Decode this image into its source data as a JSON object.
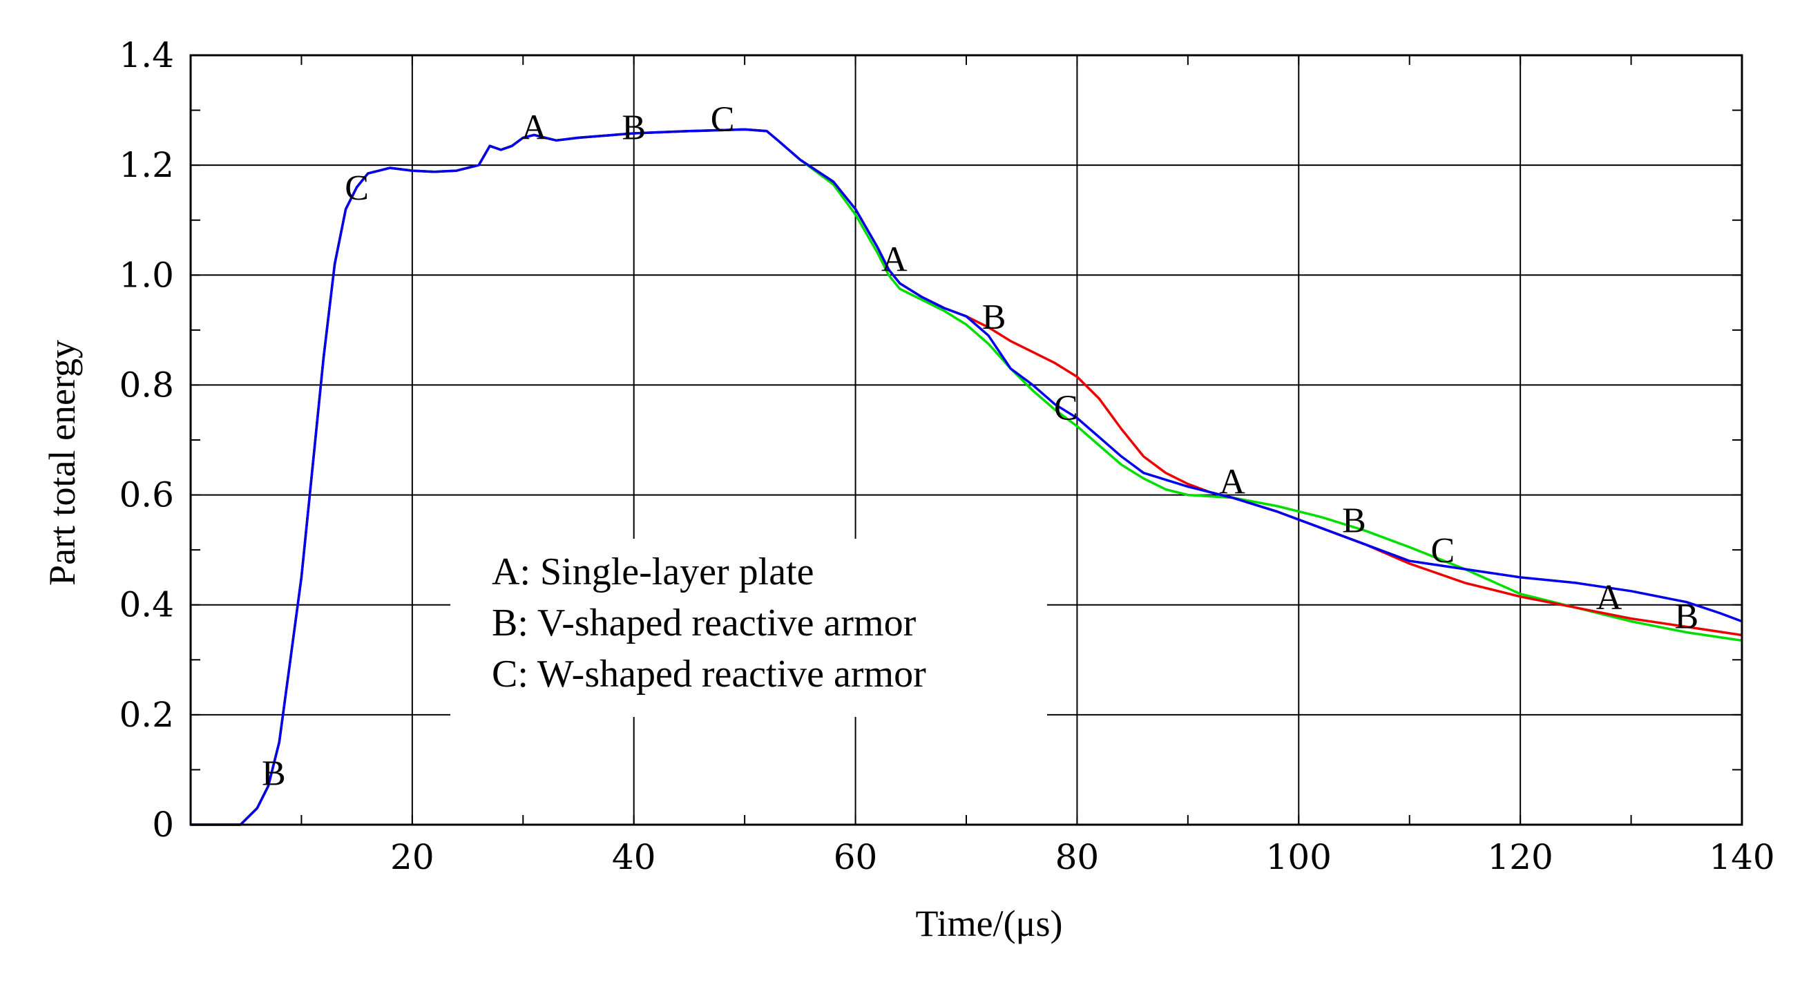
{
  "chart_data": {
    "type": "line",
    "title": "",
    "xlabel": "Time/(μs)",
    "ylabel": "Part total energy",
    "xlim": [
      0,
      140
    ],
    "ylim": [
      0,
      1.4
    ],
    "x_ticks": [
      20,
      40,
      60,
      80,
      100,
      120,
      140
    ],
    "x_tick_labels": [
      "20",
      "40",
      "60",
      "80",
      "100",
      "120",
      "140"
    ],
    "y_ticks": [
      0,
      0.2,
      0.4,
      0.6,
      0.8,
      1.0,
      1.2,
      1.4
    ],
    "y_tick_labels": [
      "0",
      "0.2",
      "0.4",
      "0.6",
      "0.8",
      "1.0",
      "1.2",
      "1.4"
    ],
    "grid": true,
    "legend_position": "center-left",
    "legend": [
      "A: Single-layer plate",
      "B: V-shaped reactive armor",
      "C: W-shaped reactive armor"
    ],
    "series": [
      {
        "marker": "A",
        "color": "#0000ee",
        "points": [
          [
            0,
            0
          ],
          [
            4.5,
            0
          ],
          [
            6,
            0.03
          ],
          [
            7,
            0.07
          ],
          [
            8,
            0.15
          ],
          [
            9,
            0.3
          ],
          [
            10,
            0.45
          ],
          [
            11,
            0.65
          ],
          [
            12,
            0.85
          ],
          [
            13,
            1.02
          ],
          [
            14,
            1.12
          ],
          [
            15,
            1.16
          ],
          [
            16,
            1.185
          ],
          [
            18,
            1.195
          ],
          [
            20,
            1.19
          ],
          [
            22,
            1.188
          ],
          [
            24,
            1.19
          ],
          [
            25,
            1.195
          ],
          [
            26,
            1.2
          ],
          [
            27,
            1.235
          ],
          [
            28,
            1.228
          ],
          [
            29,
            1.235
          ],
          [
            30,
            1.25
          ],
          [
            31,
            1.255
          ],
          [
            32,
            1.25
          ],
          [
            33,
            1.245
          ],
          [
            35,
            1.25
          ],
          [
            40,
            1.258
          ],
          [
            45,
            1.262
          ],
          [
            50,
            1.265
          ],
          [
            52,
            1.262
          ],
          [
            53,
            1.245
          ],
          [
            55,
            1.21
          ],
          [
            58,
            1.17
          ],
          [
            60,
            1.12
          ],
          [
            62,
            1.05
          ],
          [
            63,
            1.01
          ],
          [
            64,
            0.985
          ],
          [
            66,
            0.96
          ],
          [
            68,
            0.94
          ],
          [
            70,
            0.925
          ],
          [
            72,
            0.89
          ],
          [
            74,
            0.83
          ],
          [
            76,
            0.8
          ],
          [
            78,
            0.765
          ],
          [
            80,
            0.74
          ],
          [
            82,
            0.705
          ],
          [
            84,
            0.67
          ],
          [
            86,
            0.64
          ],
          [
            90,
            0.615
          ],
          [
            94,
            0.595
          ],
          [
            98,
            0.57
          ],
          [
            102,
            0.54
          ],
          [
            106,
            0.51
          ],
          [
            110,
            0.48
          ],
          [
            115,
            0.465
          ],
          [
            120,
            0.45
          ],
          [
            125,
            0.44
          ],
          [
            130,
            0.425
          ],
          [
            135,
            0.405
          ],
          [
            138,
            0.385
          ],
          [
            140,
            0.37
          ]
        ]
      },
      {
        "marker": "B",
        "color": "#ee0000",
        "points": [
          [
            0,
            0
          ],
          [
            4.5,
            0
          ],
          [
            6,
            0.03
          ],
          [
            7,
            0.07
          ],
          [
            8,
            0.15
          ],
          [
            9,
            0.3
          ],
          [
            10,
            0.45
          ],
          [
            11,
            0.65
          ],
          [
            12,
            0.85
          ],
          [
            13,
            1.02
          ],
          [
            14,
            1.12
          ],
          [
            15,
            1.16
          ],
          [
            16,
            1.185
          ],
          [
            18,
            1.195
          ],
          [
            20,
            1.19
          ],
          [
            22,
            1.188
          ],
          [
            24,
            1.19
          ],
          [
            25,
            1.195
          ],
          [
            26,
            1.2
          ],
          [
            27,
            1.235
          ],
          [
            28,
            1.228
          ],
          [
            29,
            1.235
          ],
          [
            30,
            1.25
          ],
          [
            31,
            1.255
          ],
          [
            32,
            1.25
          ],
          [
            33,
            1.245
          ],
          [
            35,
            1.25
          ],
          [
            40,
            1.258
          ],
          [
            45,
            1.262
          ],
          [
            50,
            1.265
          ],
          [
            52,
            1.262
          ],
          [
            53,
            1.245
          ],
          [
            55,
            1.21
          ],
          [
            58,
            1.17
          ],
          [
            60,
            1.12
          ],
          [
            62,
            1.05
          ],
          [
            63,
            1.01
          ],
          [
            64,
            0.985
          ],
          [
            66,
            0.96
          ],
          [
            68,
            0.94
          ],
          [
            70,
            0.925
          ],
          [
            72,
            0.905
          ],
          [
            74,
            0.88
          ],
          [
            76,
            0.86
          ],
          [
            78,
            0.84
          ],
          [
            80,
            0.815
          ],
          [
            82,
            0.775
          ],
          [
            84,
            0.72
          ],
          [
            86,
            0.67
          ],
          [
            88,
            0.64
          ],
          [
            90,
            0.62
          ],
          [
            92,
            0.605
          ],
          [
            94,
            0.595
          ],
          [
            98,
            0.57
          ],
          [
            102,
            0.54
          ],
          [
            106,
            0.51
          ],
          [
            110,
            0.475
          ],
          [
            115,
            0.44
          ],
          [
            120,
            0.415
          ],
          [
            125,
            0.395
          ],
          [
            130,
            0.375
          ],
          [
            135,
            0.36
          ],
          [
            140,
            0.345
          ]
        ]
      },
      {
        "marker": "C",
        "color": "#00dd00",
        "points": [
          [
            0,
            0
          ],
          [
            4.5,
            0
          ],
          [
            6,
            0.03
          ],
          [
            7,
            0.07
          ],
          [
            8,
            0.15
          ],
          [
            9,
            0.3
          ],
          [
            10,
            0.45
          ],
          [
            11,
            0.65
          ],
          [
            12,
            0.85
          ],
          [
            13,
            1.02
          ],
          [
            14,
            1.12
          ],
          [
            15,
            1.16
          ],
          [
            16,
            1.185
          ],
          [
            18,
            1.195
          ],
          [
            20,
            1.19
          ],
          [
            22,
            1.188
          ],
          [
            24,
            1.19
          ],
          [
            25,
            1.195
          ],
          [
            26,
            1.2
          ],
          [
            27,
            1.235
          ],
          [
            28,
            1.228
          ],
          [
            29,
            1.235
          ],
          [
            30,
            1.25
          ],
          [
            31,
            1.255
          ],
          [
            32,
            1.25
          ],
          [
            33,
            1.245
          ],
          [
            35,
            1.25
          ],
          [
            40,
            1.258
          ],
          [
            45,
            1.262
          ],
          [
            50,
            1.265
          ],
          [
            52,
            1.262
          ],
          [
            53,
            1.245
          ],
          [
            55,
            1.21
          ],
          [
            58,
            1.165
          ],
          [
            60,
            1.11
          ],
          [
            62,
            1.04
          ],
          [
            63,
            1.0
          ],
          [
            64,
            0.975
          ],
          [
            66,
            0.955
          ],
          [
            68,
            0.935
          ],
          [
            70,
            0.91
          ],
          [
            72,
            0.875
          ],
          [
            74,
            0.83
          ],
          [
            76,
            0.79
          ],
          [
            78,
            0.755
          ],
          [
            80,
            0.725
          ],
          [
            82,
            0.69
          ],
          [
            84,
            0.655
          ],
          [
            86,
            0.63
          ],
          [
            88,
            0.61
          ],
          [
            90,
            0.6
          ],
          [
            94,
            0.595
          ],
          [
            98,
            0.58
          ],
          [
            102,
            0.56
          ],
          [
            106,
            0.535
          ],
          [
            110,
            0.505
          ],
          [
            115,
            0.465
          ],
          [
            120,
            0.42
          ],
          [
            125,
            0.395
          ],
          [
            130,
            0.37
          ],
          [
            135,
            0.35
          ],
          [
            140,
            0.335
          ]
        ]
      }
    ],
    "annotations": [
      {
        "text": "A",
        "x": 31,
        "y": 1.27
      },
      {
        "text": "B",
        "x": 40,
        "y": 1.27
      },
      {
        "text": "C",
        "x": 48,
        "y": 1.285
      },
      {
        "text": "C",
        "x": 15,
        "y": 1.16
      },
      {
        "text": "B",
        "x": 7.5,
        "y": 0.095
      },
      {
        "text": "A",
        "x": 63.5,
        "y": 1.03
      },
      {
        "text": "B",
        "x": 72.5,
        "y": 0.925
      },
      {
        "text": "C",
        "x": 79,
        "y": 0.76
      },
      {
        "text": "A",
        "x": 94,
        "y": 0.625
      },
      {
        "text": "B",
        "x": 105,
        "y": 0.555
      },
      {
        "text": "C",
        "x": 113,
        "y": 0.5
      },
      {
        "text": "A",
        "x": 128,
        "y": 0.415
      },
      {
        "text": "B",
        "x": 135,
        "y": 0.38
      }
    ]
  }
}
